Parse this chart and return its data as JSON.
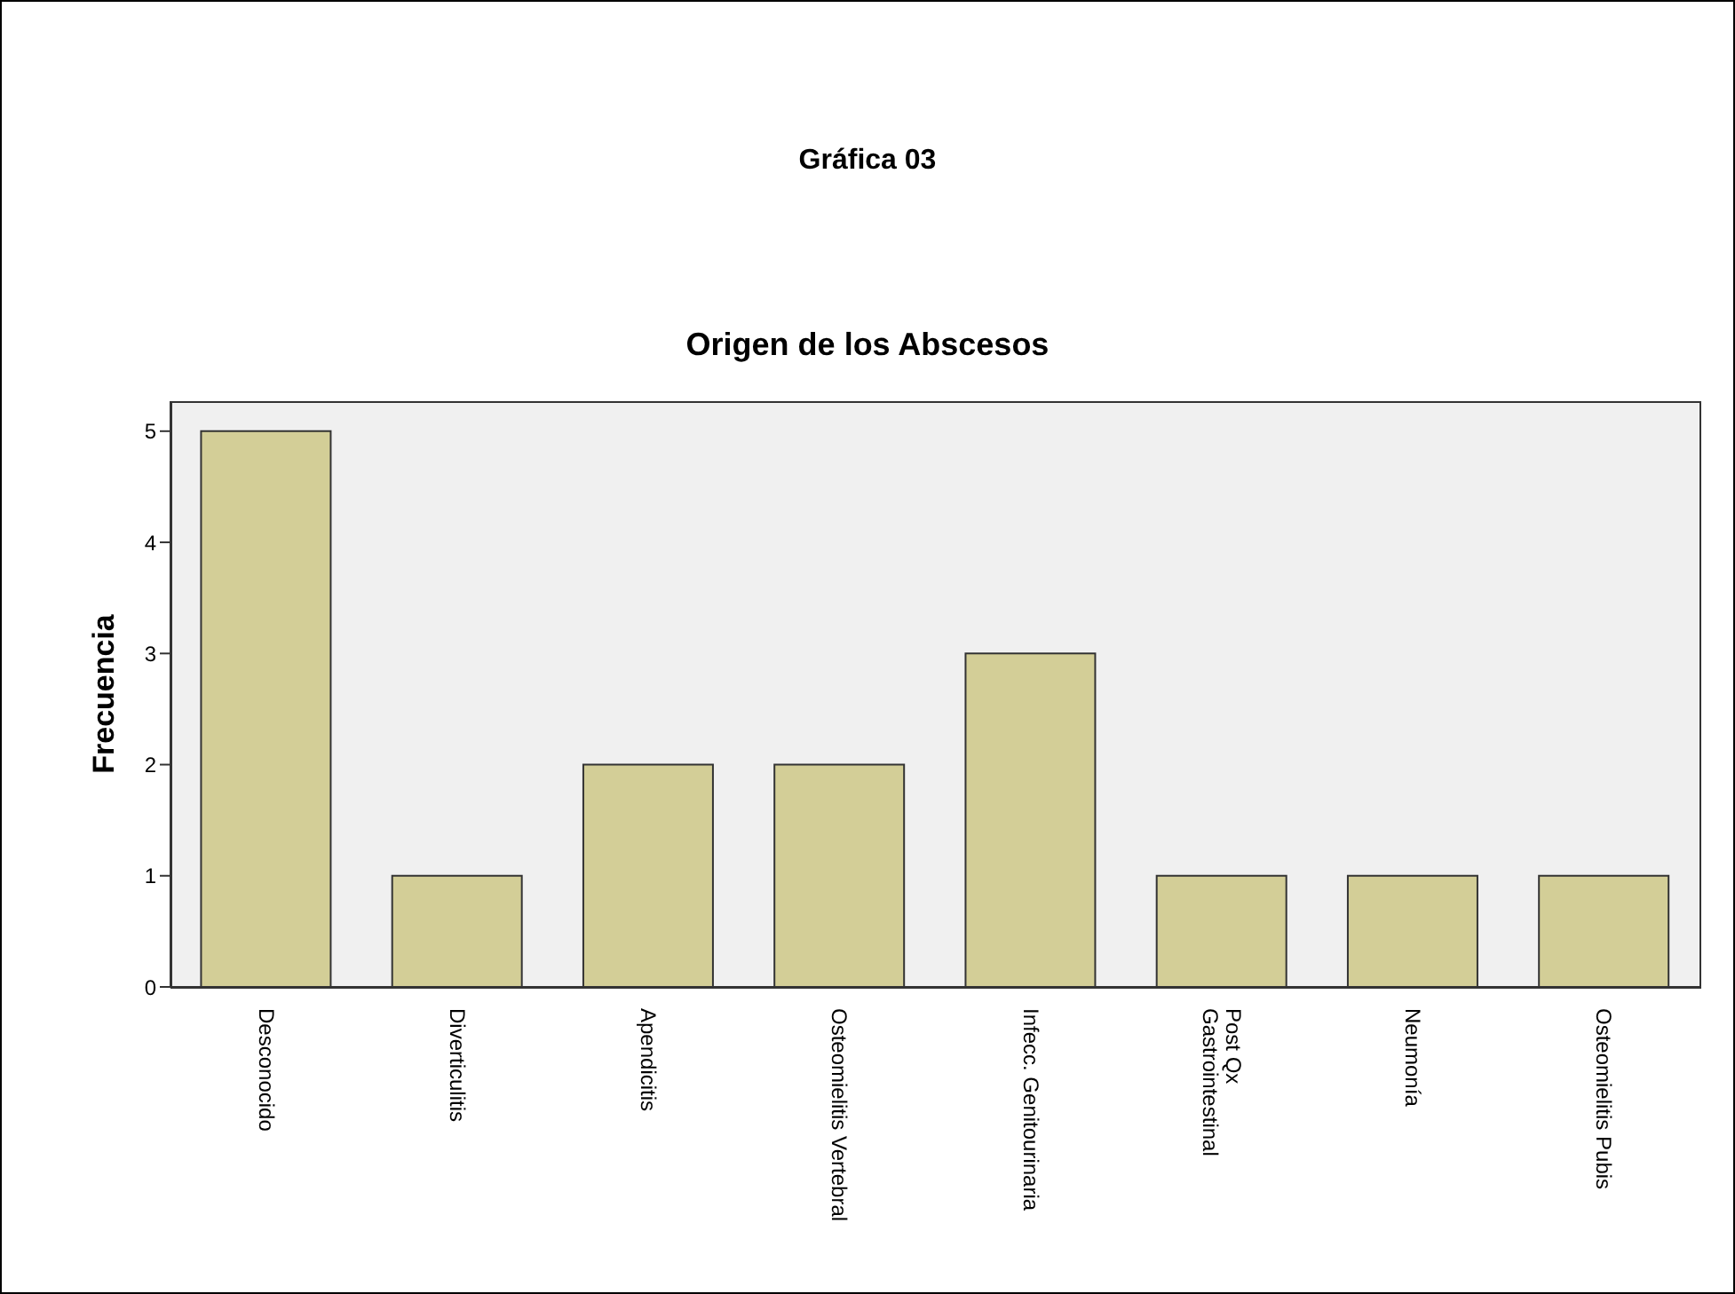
{
  "chart_data": {
    "type": "bar",
    "title": "Gráfica 03",
    "subtitle": "Origen de los Abscesos",
    "ylabel": "Frecuencia",
    "categories": [
      "Desconocido",
      "Diverticulitis",
      "Apendicitis",
      "Osteomielitis Vertebral",
      "Infecc. Genitourinaria",
      "Post Qx\nGastrointestinal",
      "Neumonía",
      "Osteomielitis Pubis"
    ],
    "values": [
      5,
      1,
      2,
      2,
      3,
      1,
      1,
      1
    ],
    "color": "#d3ce97",
    "ylim": [
      0,
      5.27
    ],
    "yticks": [
      0,
      1,
      2,
      3,
      4,
      5
    ],
    "grid": false
  }
}
